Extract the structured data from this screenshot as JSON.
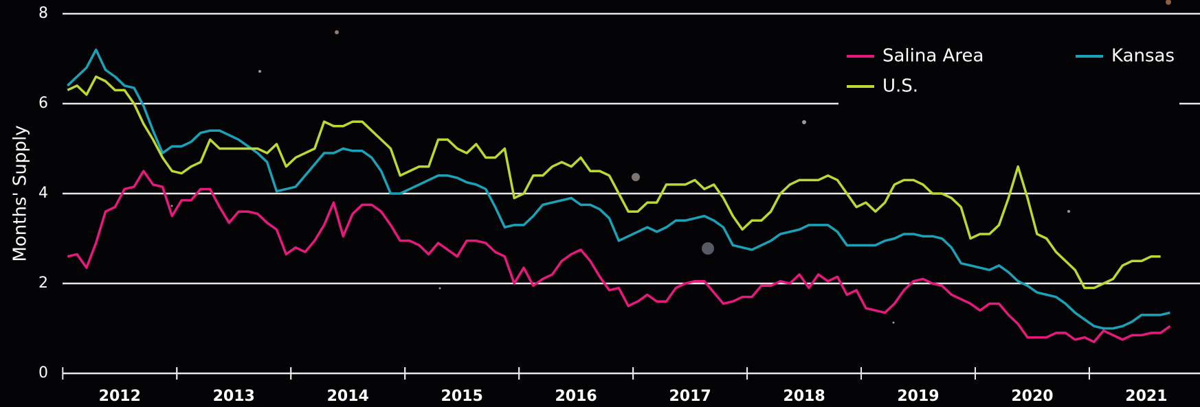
{
  "chart_data": {
    "type": "line",
    "y_label": "Months' Supply",
    "categories": [
      null,
      null,
      null,
      null,
      null,
      null,
      "2012",
      null,
      null,
      null,
      null,
      null,
      null,
      null,
      null,
      null,
      null,
      null,
      "2013",
      null,
      null,
      null,
      null,
      null,
      null,
      null,
      null,
      null,
      null,
      null,
      "2014",
      null,
      null,
      null,
      null,
      null,
      null,
      null,
      null,
      null,
      null,
      null,
      "2015",
      null,
      null,
      null,
      null,
      null,
      null,
      null,
      null,
      null,
      null,
      null,
      "2016",
      null,
      null,
      null,
      null,
      null,
      null,
      null,
      null,
      null,
      null,
      null,
      "2017",
      null,
      null,
      null,
      null,
      null,
      null,
      null,
      null,
      null,
      null,
      null,
      "2018",
      null,
      null,
      null,
      null,
      null,
      null,
      null,
      null,
      null,
      null,
      null,
      "2019",
      null,
      null,
      null,
      null,
      null,
      null,
      null,
      null,
      null,
      null,
      null,
      "2020",
      null,
      null,
      null,
      null,
      null,
      null,
      null,
      null,
      null,
      null,
      null,
      "2021",
      null,
      null
    ],
    "series": [
      {
        "name": "Salina Area",
        "color": "#e8197d",
        "values": [
          2.6,
          2.65,
          2.35,
          2.9,
          3.6,
          3.7,
          4.1,
          4.15,
          4.5,
          4.2,
          4.15,
          3.5,
          3.85,
          3.85,
          4.1,
          4.1,
          3.7,
          3.35,
          3.6,
          3.6,
          3.55,
          3.35,
          3.2,
          2.65,
          2.8,
          2.7,
          2.95,
          3.3,
          3.8,
          3.05,
          3.55,
          3.75,
          3.75,
          3.6,
          3.3,
          2.95,
          2.95,
          2.85,
          2.65,
          2.9,
          2.75,
          2.6,
          2.95,
          2.95,
          2.9,
          2.7,
          2.6,
          2.0,
          2.35,
          1.95,
          2.1,
          2.2,
          2.5,
          2.65,
          2.75,
          2.5,
          2.15,
          1.85,
          1.9,
          1.5,
          1.6,
          1.75,
          1.6,
          1.6,
          1.9,
          2.0,
          2.05,
          2.05,
          1.8,
          1.55,
          1.6,
          1.7,
          1.7,
          1.95,
          1.95,
          2.05,
          2.0,
          2.2,
          1.9,
          2.2,
          2.05,
          2.15,
          1.75,
          1.85,
          1.45,
          1.4,
          1.35,
          1.55,
          1.85,
          2.05,
          2.1,
          2.0,
          1.95,
          1.75,
          1.65,
          1.55,
          1.4,
          1.55,
          1.55,
          1.3,
          1.1,
          0.8,
          0.8,
          0.8,
          0.9,
          0.9,
          0.75,
          0.8,
          0.7,
          0.95,
          0.85,
          0.75,
          0.85,
          0.85,
          0.9,
          0.9,
          1.05
        ]
      },
      {
        "name": "Kansas",
        "color": "#1aa3b8",
        "values": [
          6.4,
          6.6,
          6.8,
          7.2,
          6.75,
          6.6,
          6.4,
          6.35,
          5.95,
          5.4,
          4.9,
          5.05,
          5.05,
          5.15,
          5.35,
          5.4,
          5.4,
          5.3,
          5.2,
          5.05,
          4.9,
          4.7,
          4.05,
          4.1,
          4.15,
          4.4,
          4.65,
          4.9,
          4.9,
          5.0,
          4.95,
          4.95,
          4.8,
          4.5,
          4.0,
          4.0,
          4.1,
          4.2,
          4.3,
          4.4,
          4.4,
          4.35,
          4.25,
          4.2,
          4.1,
          3.7,
          3.25,
          3.3,
          3.3,
          3.5,
          3.75,
          3.8,
          3.85,
          3.9,
          3.75,
          3.75,
          3.65,
          3.45,
          2.95,
          3.05,
          3.15,
          3.25,
          3.15,
          3.25,
          3.4,
          3.4,
          3.45,
          3.5,
          3.4,
          3.25,
          2.85,
          2.8,
          2.75,
          2.85,
          2.95,
          3.1,
          3.15,
          3.2,
          3.3,
          3.3,
          3.3,
          3.15,
          2.85,
          2.85,
          2.85,
          2.85,
          2.95,
          3.0,
          3.1,
          3.1,
          3.05,
          3.05,
          3.0,
          2.8,
          2.45,
          2.4,
          2.35,
          2.3,
          2.4,
          2.25,
          2.05,
          1.95,
          1.8,
          1.75,
          1.7,
          1.55,
          1.35,
          1.2,
          1.05,
          1.0,
          1.0,
          1.05,
          1.15,
          1.3,
          1.3,
          1.3,
          1.35
        ]
      },
      {
        "name": "U.S.",
        "color": "#bfd732",
        "values": [
          6.3,
          6.4,
          6.2,
          6.6,
          6.5,
          6.3,
          6.3,
          6.0,
          5.55,
          5.2,
          4.8,
          4.5,
          4.45,
          4.6,
          4.7,
          5.2,
          5.0,
          5.0,
          5.0,
          5.0,
          5.0,
          4.9,
          5.1,
          4.6,
          4.8,
          4.9,
          5.0,
          5.6,
          5.5,
          5.5,
          5.6,
          5.6,
          5.4,
          5.2,
          5.0,
          4.4,
          4.5,
          4.6,
          4.6,
          5.2,
          5.2,
          5.0,
          4.9,
          5.1,
          4.8,
          4.8,
          5.0,
          3.9,
          4.0,
          4.4,
          4.4,
          4.6,
          4.7,
          4.6,
          4.8,
          4.5,
          4.5,
          4.4,
          4.0,
          3.6,
          3.6,
          3.8,
          3.8,
          4.2,
          4.2,
          4.2,
          4.3,
          4.1,
          4.2,
          3.9,
          3.5,
          3.2,
          3.4,
          3.4,
          3.6,
          4.0,
          4.2,
          4.3,
          4.3,
          4.3,
          4.4,
          4.3,
          4.0,
          3.7,
          3.8,
          3.6,
          3.8,
          4.2,
          4.3,
          4.3,
          4.2,
          4.0,
          4.0,
          3.9,
          3.7,
          3.0,
          3.1,
          3.1,
          3.3,
          3.9,
          4.6,
          3.9,
          3.1,
          3.0,
          2.7,
          2.5,
          2.3,
          1.9,
          1.9,
          2.0,
          2.1,
          2.4,
          2.5,
          2.5,
          2.6,
          2.6,
          null
        ]
      }
    ],
    "ylim": [
      0,
      8
    ],
    "yticks": [
      0,
      2,
      4,
      6,
      8
    ],
    "grid": true,
    "legend": "upper right"
  }
}
